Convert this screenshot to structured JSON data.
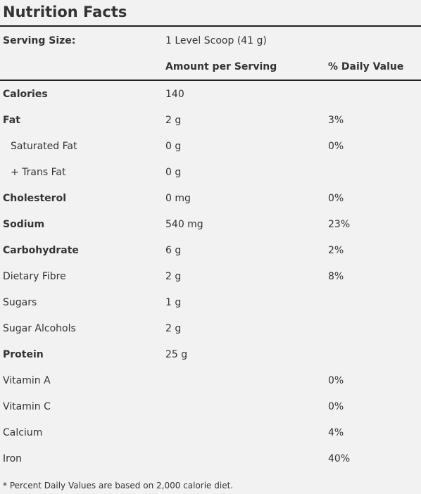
{
  "header": {
    "title": "Nutrition Facts"
  },
  "serving": {
    "label": "Serving Size:",
    "value": "1 Level Scoop (41 g)"
  },
  "table": {
    "columns": [
      "Amount per Serving",
      "% Daily Value"
    ],
    "rows": [
      {
        "label": "Calories",
        "amount": "140",
        "bold": true
      },
      {
        "label": "Fat",
        "amount": "2 g",
        "dv": "3%",
        "bold": true
      },
      {
        "label": "Saturated Fat",
        "amount": "0 g",
        "dv": "0%",
        "indent": true
      },
      {
        "label": "+ Trans Fat",
        "amount": "0 g",
        "indent": true
      },
      {
        "label": "Cholesterol",
        "amount": "0 mg",
        "dv": "0%",
        "bold": true
      },
      {
        "label": "Sodium",
        "amount": "540 mg",
        "dv": "23%",
        "bold": true
      },
      {
        "label": "Carbohydrate",
        "amount": "6 g",
        "dv": "2%",
        "bold": true
      },
      {
        "label": "Dietary Fibre",
        "amount": "2 g",
        "dv": "8%"
      },
      {
        "label": "Sugars",
        "amount": "1 g"
      },
      {
        "label": "Sugar Alcohols",
        "amount": "2 g"
      },
      {
        "label": "Protein",
        "amount": "25 g",
        "bold": true
      },
      {
        "label": "Vitamin A",
        "dv": "0%"
      },
      {
        "label": "Vitamin C",
        "dv": "0%"
      },
      {
        "label": "Calcium",
        "dv": "4%"
      },
      {
        "label": "Iron",
        "dv": "40%"
      }
    ]
  },
  "footnote": "* Percent Daily Values are based on 2,000 calorie diet."
}
